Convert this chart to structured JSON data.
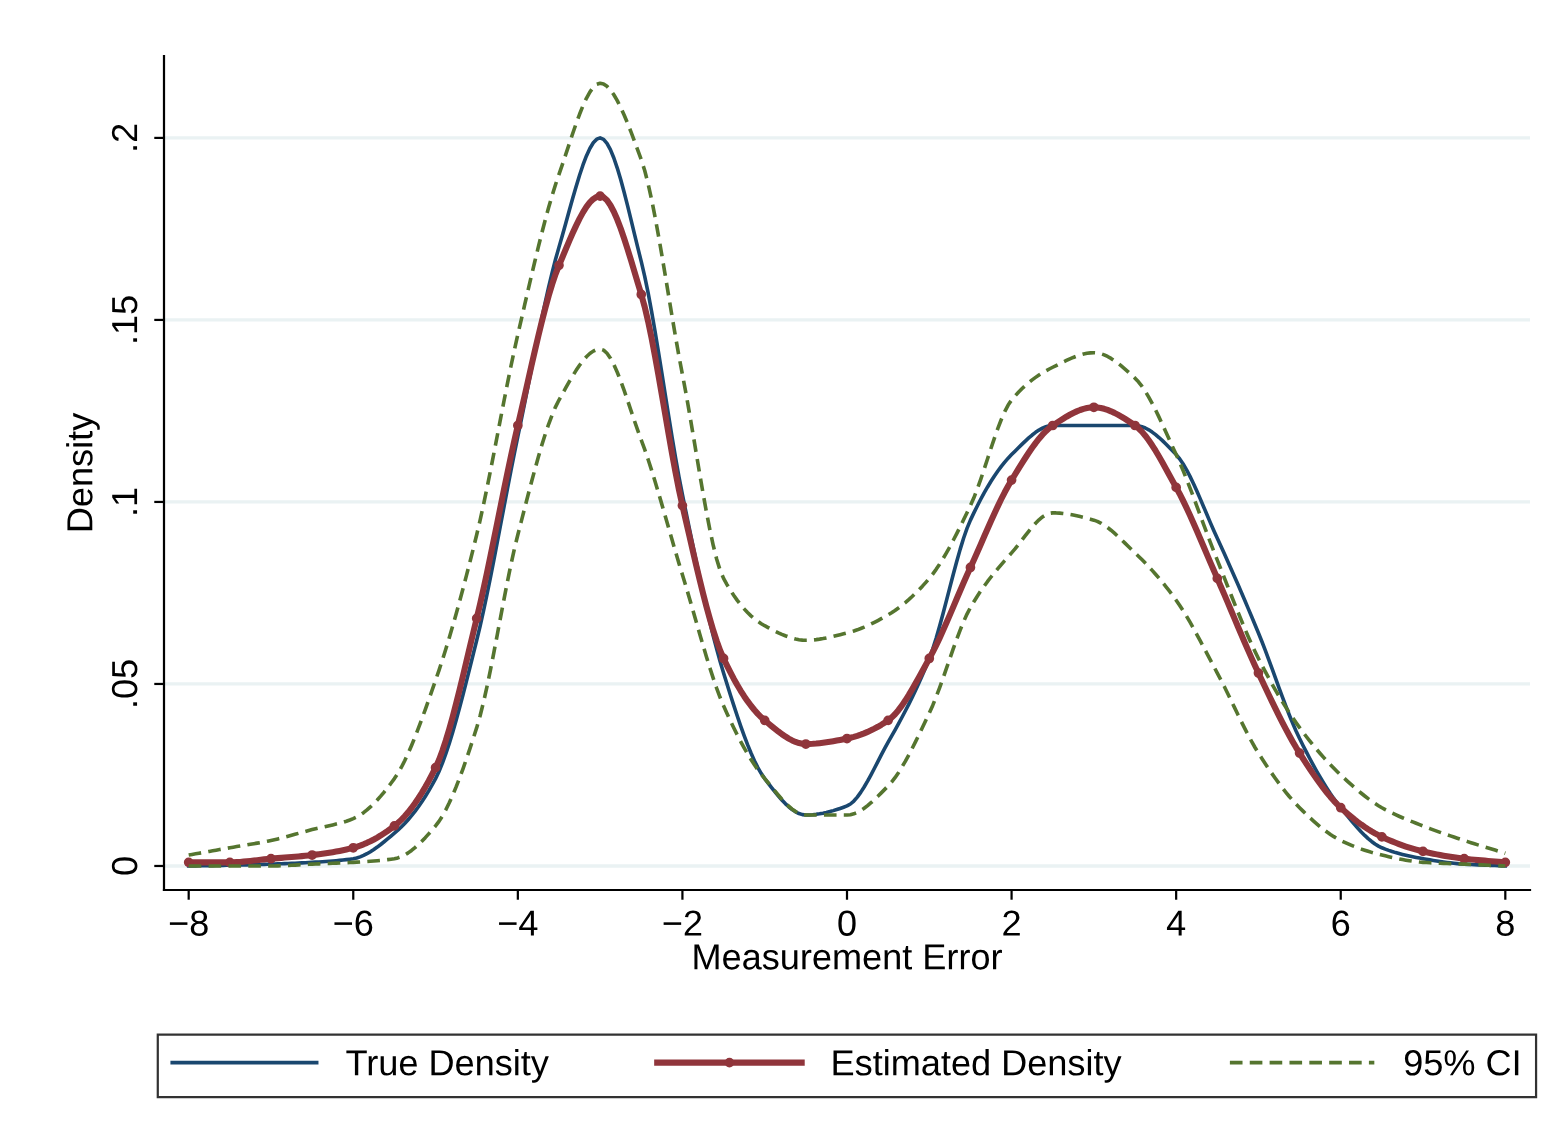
{
  "chart_data": {
    "type": "line",
    "xlabel": "Measurement Error",
    "ylabel": "Density",
    "x": [
      -8,
      -7.5,
      -7,
      -6.5,
      -6,
      -5.5,
      -5,
      -4.5,
      -4,
      -3.5,
      -3,
      -2.5,
      -2,
      -1.5,
      -1,
      -0.5,
      0,
      0.5,
      1,
      1.5,
      2,
      2.5,
      3,
      3.5,
      4,
      4.5,
      5,
      5.5,
      6,
      6.5,
      7,
      7.5,
      8
    ],
    "series": [
      {
        "name": "True Density",
        "color": "#1a476f",
        "marker": "none",
        "line_style": "solid",
        "values": [
          0,
          0.0002,
          0.0005,
          0.001,
          0.002,
          0.009,
          0.024,
          0.062,
          0.118,
          0.17,
          0.2,
          0.166,
          0.102,
          0.053,
          0.024,
          0.014,
          0.0165,
          0.034,
          0.057,
          0.095,
          0.113,
          0.121,
          0.121,
          0.121,
          0.113,
          0.09,
          0.064,
          0.035,
          0.016,
          0.005,
          0.002,
          0.0005,
          0
        ]
      },
      {
        "name": "Estimated Density",
        "color": "#90353b",
        "marker": "circle",
        "line_style": "solid",
        "values": [
          0.001,
          0.001,
          0.002,
          0.003,
          0.005,
          0.011,
          0.027,
          0.068,
          0.121,
          0.165,
          0.184,
          0.157,
          0.099,
          0.057,
          0.04,
          0.0335,
          0.035,
          0.04,
          0.057,
          0.082,
          0.106,
          0.121,
          0.126,
          0.121,
          0.104,
          0.079,
          0.053,
          0.031,
          0.016,
          0.008,
          0.004,
          0.002,
          0.001
        ]
      },
      {
        "name": "95% CI",
        "color": "#55752f",
        "marker": "none",
        "line_style": "dashed",
        "values": [
          0.003,
          0.005,
          0.007,
          0.01,
          0.013,
          0.024,
          0.051,
          0.091,
          0.146,
          0.19,
          0.215,
          0.194,
          0.135,
          0.079,
          0.066,
          0.062,
          0.064,
          0.069,
          0.079,
          0.099,
          0.128,
          0.137,
          0.141,
          0.134,
          0.113,
          0.084,
          0.057,
          0.038,
          0.025,
          0.016,
          0.011,
          0.007,
          0.0035
        ]
      },
      {
        "color": "#55752f",
        "marker": "none",
        "line_style": "dashed",
        "values": [
          0,
          0,
          0,
          0.0005,
          0.001,
          0.002,
          0.011,
          0.038,
          0.091,
          0.128,
          0.142,
          0.117,
          0.08,
          0.044,
          0.024,
          0.014,
          0.014,
          0.022,
          0.042,
          0.071,
          0.086,
          0.097,
          0.095,
          0.086,
          0.073,
          0.053,
          0.031,
          0.016,
          0.007,
          0.003,
          0.001,
          0.0005,
          0
        ]
      }
    ],
    "xlim": [
      -8.3,
      8.3
    ],
    "xticks": [
      -8,
      -6,
      -4,
      -2,
      0,
      2,
      4,
      6,
      8
    ],
    "ylim": [
      -0.0066,
      0.2225
    ],
    "yticks": [
      0,
      {
        "value": 0.05,
        "label": ".05"
      },
      {
        "value": 0.1,
        "label": ".1"
      },
      {
        "value": 0.15,
        "label": ".15"
      },
      {
        "value": 0.2,
        "label": ".2"
      }
    ],
    "grid": "y",
    "legend": "bottom"
  }
}
